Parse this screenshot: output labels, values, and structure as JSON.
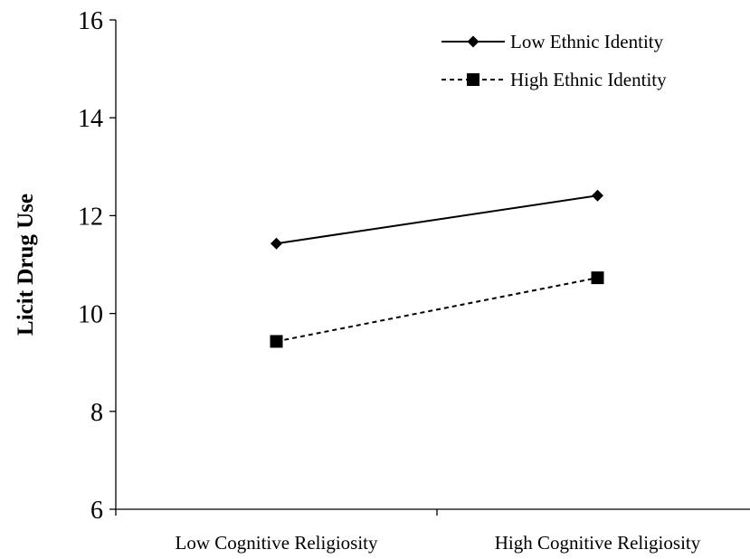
{
  "chart_data": {
    "type": "line",
    "title": "",
    "xlabel": "",
    "ylabel": "Licit Drug Use",
    "categories": [
      "Low Cognitive Religiosity",
      "High Cognitive Religiosity"
    ],
    "ylim": [
      6,
      16
    ],
    "yticks": [
      "6",
      "8",
      "10",
      "12",
      "14",
      "16"
    ],
    "grid": false,
    "legend_position": "top-right",
    "series": [
      {
        "name": "Low Ethnic Identity",
        "values": [
          11.43,
          12.41
        ],
        "line_style": "solid",
        "marker": "diamond",
        "color": "#000000"
      },
      {
        "name": "High Ethnic Identity",
        "values": [
          9.43,
          10.73
        ],
        "line_style": "dashed",
        "marker": "square",
        "color": "#000000"
      }
    ]
  }
}
